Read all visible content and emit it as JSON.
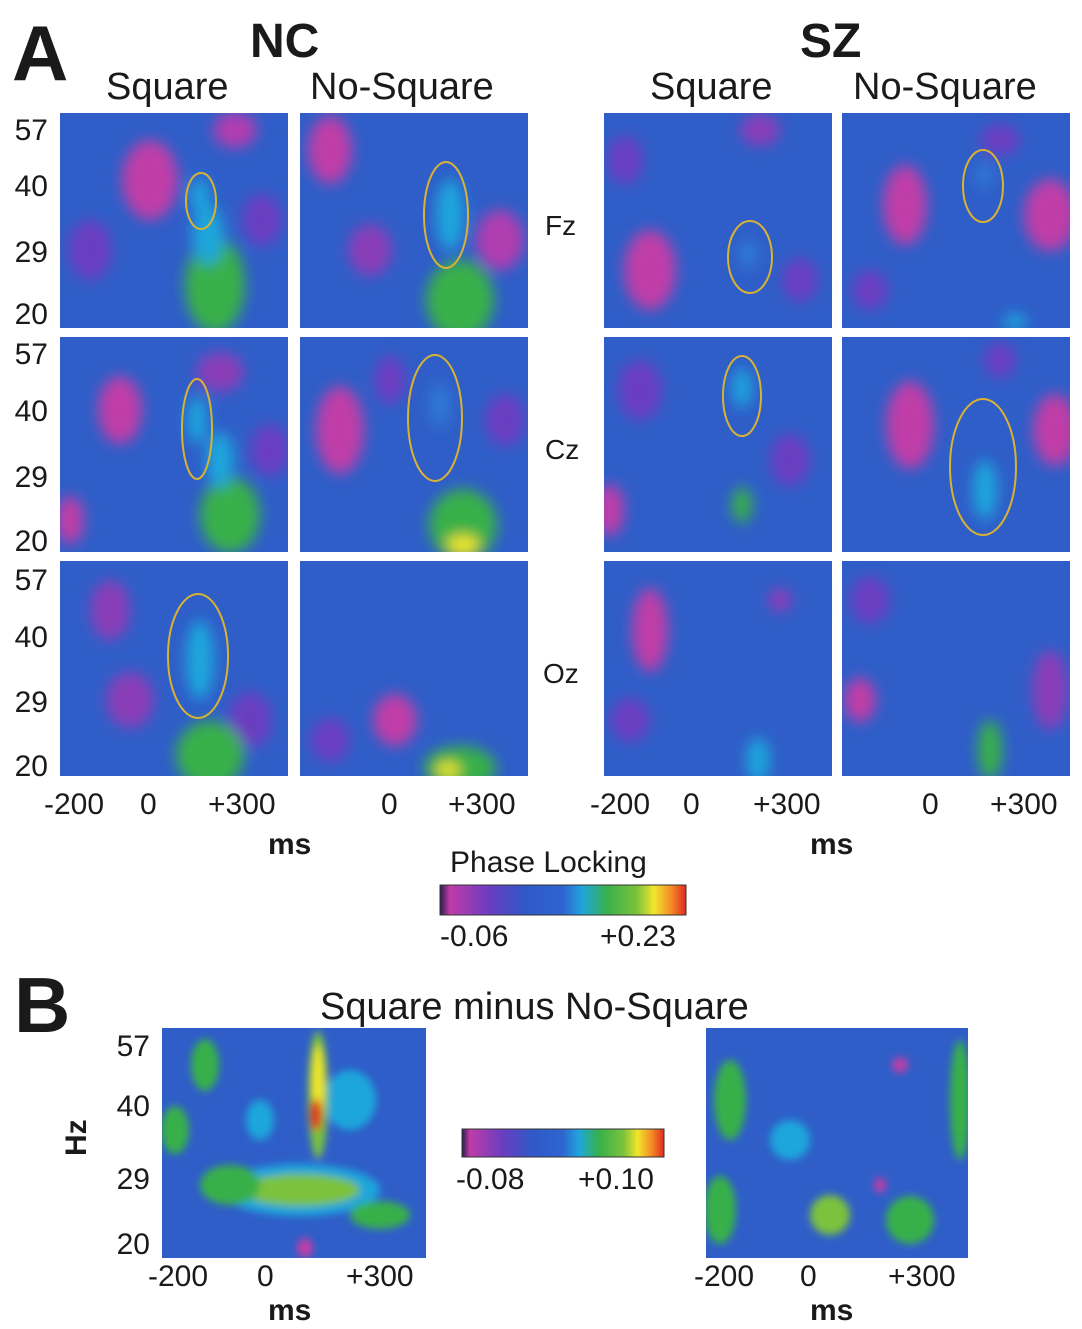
{
  "panel_a": {
    "letter": "A",
    "groups": [
      "NC",
      "SZ"
    ],
    "columns": [
      "Square",
      "No-Square",
      "Square",
      "No-Square"
    ],
    "electrodes": [
      "Fz",
      "Cz",
      "Oz"
    ],
    "y_ticks": [
      "57",
      "40",
      "29",
      "20"
    ],
    "x_ticks_with_neg": [
      "-200",
      "0",
      "+300"
    ],
    "x_ticks_no_neg": [
      "0",
      "+300"
    ],
    "x_unit": "ms",
    "colorbar": {
      "title": "Phase Locking",
      "min_label": "-0.06",
      "max_label": "+0.23"
    }
  },
  "panel_b": {
    "letter": "B",
    "title": "Square minus No-Square",
    "y_unit": "Hz",
    "y_ticks": [
      "57",
      "40",
      "29",
      "20"
    ],
    "x_ticks": [
      "-200",
      "0",
      "+300"
    ],
    "x_unit": "ms",
    "colorbar": {
      "min_label": "-0.08",
      "max_label": "+0.10"
    }
  },
  "colors": {
    "magenta": "#c03ca8",
    "purple": "#5a3dbf",
    "blue": "#2f59c8",
    "cyan": "#1fa6dc",
    "green": "#38b04a",
    "yellow": "#f2e62a",
    "orange": "#f28a28",
    "red": "#e02a1e",
    "ellipse": "#d9b233"
  }
}
